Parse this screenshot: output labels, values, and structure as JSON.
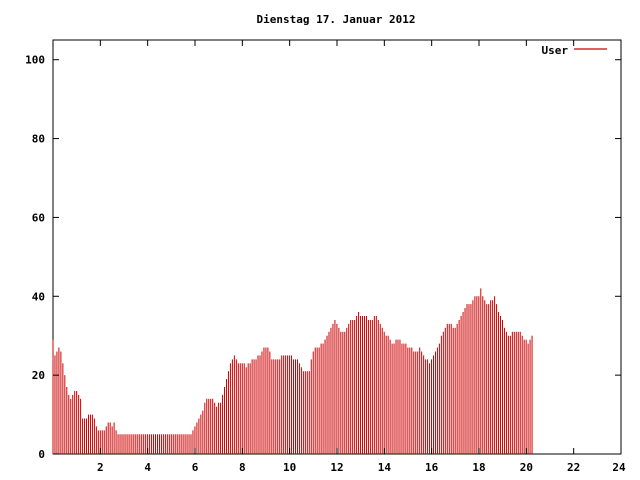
{
  "chart_data": {
    "type": "bar",
    "title": "Dienstag 17. Januar 2012",
    "xlabel": "",
    "ylabel": "",
    "xlim": [
      0,
      24
    ],
    "ylim": [
      0,
      105
    ],
    "x_ticks": [
      2,
      4,
      6,
      8,
      10,
      12,
      14,
      16,
      18,
      20,
      22,
      24
    ],
    "y_ticks": [
      0,
      20,
      40,
      60,
      80,
      100
    ],
    "grid": false,
    "legend": {
      "position": "top-right"
    },
    "colors": {
      "series": "#cc0000",
      "axis": "#000000"
    },
    "series": [
      {
        "name": "User",
        "x_start": 0,
        "x_step": 0.0833,
        "values": [
          29,
          25,
          26,
          27,
          26,
          23,
          20,
          17,
          15,
          14,
          15,
          16,
          16,
          15,
          14,
          9,
          9,
          9,
          10,
          10,
          10,
          9,
          7,
          6,
          6,
          6,
          6,
          7,
          8,
          8,
          7,
          8,
          6,
          5,
          5,
          5,
          5,
          5,
          5,
          5,
          5,
          5,
          5,
          5,
          5,
          5,
          5,
          5,
          5,
          5,
          5,
          5,
          5,
          5,
          5,
          5,
          5,
          5,
          5,
          5,
          5,
          5,
          5,
          5,
          5,
          5,
          5,
          5,
          5,
          5,
          5,
          6,
          7,
          8,
          9,
          10,
          11,
          13,
          14,
          14,
          14,
          14,
          13,
          12,
          13,
          13,
          15,
          17,
          19,
          21,
          23,
          24,
          25,
          24,
          23,
          23,
          23,
          23,
          22,
          23,
          23,
          24,
          24,
          24,
          25,
          25,
          26,
          27,
          27,
          27,
          26,
          24,
          24,
          24,
          24,
          24,
          25,
          25,
          25,
          25,
          25,
          25,
          24,
          24,
          24,
          23,
          22,
          21,
          21,
          21,
          21,
          24,
          26,
          27,
          27,
          27,
          28,
          28,
          29,
          30,
          31,
          32,
          33,
          34,
          33,
          32,
          31,
          31,
          31,
          32,
          33,
          34,
          34,
          34,
          35,
          36,
          35,
          35,
          35,
          35,
          34,
          34,
          34,
          35,
          35,
          34,
          33,
          32,
          31,
          30,
          30,
          29,
          28,
          28,
          29,
          29,
          29,
          28,
          28,
          28,
          27,
          27,
          27,
          26,
          26,
          26,
          27,
          26,
          25,
          24,
          24,
          23,
          24,
          25,
          26,
          27,
          28,
          30,
          31,
          32,
          33,
          33,
          33,
          32,
          32,
          33,
          34,
          35,
          36,
          37,
          38,
          38,
          38,
          39,
          40,
          40,
          40,
          42,
          40,
          39,
          38,
          38,
          39,
          39,
          40,
          38,
          36,
          35,
          34,
          32,
          31,
          30,
          30,
          31,
          31,
          31,
          31,
          31,
          30,
          29,
          29,
          28,
          29,
          30
        ]
      }
    ]
  }
}
